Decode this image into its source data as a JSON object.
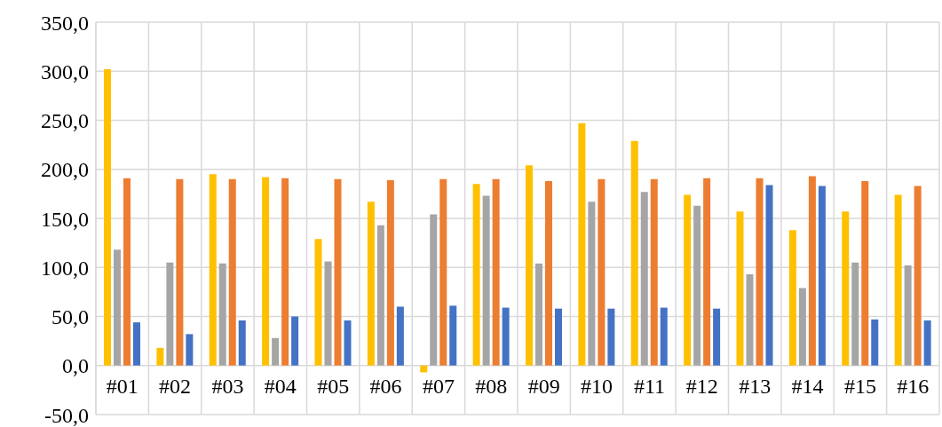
{
  "chart_data": {
    "type": "bar",
    "categories": [
      "#01",
      "#02",
      "#03",
      "#04",
      "#05",
      "#06",
      "#07",
      "#08",
      "#09",
      "#10",
      "#11",
      "#12",
      "#13",
      "#14",
      "#15",
      "#16"
    ],
    "series": [
      {
        "color": "#ffc000",
        "values": [
          302,
          18,
          195,
          192,
          129,
          167,
          -7,
          185,
          204,
          247,
          229,
          174,
          157,
          138,
          157,
          174
        ]
      },
      {
        "color": "#a5a5a5",
        "values": [
          118,
          105,
          104,
          28,
          106,
          143,
          154,
          173,
          104,
          167,
          177,
          163,
          93,
          79,
          105,
          102
        ]
      },
      {
        "color": "#ed7d31",
        "values": [
          191,
          190,
          190,
          191,
          190,
          189,
          190,
          190,
          188,
          190,
          190,
          191,
          191,
          193,
          188,
          183
        ]
      },
      {
        "color": "#4472c4",
        "values": [
          44,
          32,
          46,
          50,
          46,
          60,
          61,
          59,
          58,
          58,
          59,
          58,
          184,
          183,
          47,
          46
        ]
      }
    ],
    "ylim": [
      -50,
      350
    ],
    "yticks": [
      {
        "value": -50,
        "label": "-50,0"
      },
      {
        "value": 0,
        "label": "0,0"
      },
      {
        "value": 50,
        "label": "50,0"
      },
      {
        "value": 100,
        "label": "100,0"
      },
      {
        "value": 150,
        "label": "150,0"
      },
      {
        "value": 200,
        "label": "200,0"
      },
      {
        "value": 250,
        "label": "250,0"
      },
      {
        "value": 300,
        "label": "300,0"
      },
      {
        "value": 350,
        "label": "350,0"
      }
    ],
    "grid": true
  }
}
